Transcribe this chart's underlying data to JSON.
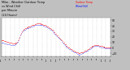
{
  "bg_color": "#ffffff",
  "outer_bg": "#c0c0c0",
  "temp_color": "#ff0000",
  "wind_color": "#0000ff",
  "grid_color": "#aaaaaa",
  "ymin": -15,
  "ymax": 55,
  "ytick_vals": [
    50,
    40,
    30,
    20,
    10,
    0,
    -10
  ],
  "temp_data": [
    14,
    14,
    13,
    13,
    12,
    12,
    12,
    11,
    11,
    11,
    10,
    10,
    9,
    9,
    8,
    8,
    8,
    8,
    8,
    9,
    10,
    11,
    13,
    16,
    20,
    24,
    27,
    30,
    32,
    33,
    34,
    35,
    36,
    37,
    37,
    38,
    38,
    39,
    39,
    40,
    41,
    41,
    42,
    42,
    43,
    43,
    44,
    44,
    44,
    44,
    44,
    44,
    43,
    43,
    43,
    42,
    42,
    41,
    41,
    40,
    39,
    38,
    37,
    36,
    35,
    34,
    33,
    32,
    31,
    29,
    28,
    26,
    25,
    23,
    22,
    20,
    18,
    17,
    15,
    13,
    12,
    10,
    9,
    7,
    6,
    4,
    3,
    2,
    1,
    0,
    -1,
    -2,
    -3,
    -4,
    -5,
    -6,
    -7,
    -7,
    -8,
    -9,
    -9,
    -10,
    -10,
    -10,
    -9,
    -9,
    -8,
    -8,
    -7,
    -6,
    -5,
    -5,
    -4,
    -3,
    -2,
    -1,
    0,
    1,
    2,
    3,
    4,
    4,
    5,
    5,
    5,
    5,
    5,
    5,
    4,
    4,
    3,
    3,
    3,
    2,
    2,
    2,
    1,
    1,
    1,
    1,
    1,
    1,
    1,
    1
  ],
  "wind_data": [
    10,
    10,
    9,
    9,
    8,
    8,
    8,
    7,
    7,
    7,
    6,
    6,
    5,
    5,
    5,
    5,
    5,
    5,
    6,
    7,
    8,
    9,
    11,
    14,
    18,
    22,
    25,
    28,
    30,
    31,
    32,
    33,
    34,
    35,
    35,
    36,
    36,
    37,
    37,
    38,
    39,
    39,
    40,
    40,
    41,
    41,
    42,
    42,
    42,
    42,
    42,
    42,
    41,
    41,
    41,
    40,
    40,
    39,
    39,
    38,
    37,
    36,
    35,
    34,
    33,
    32,
    31,
    30,
    29,
    27,
    26,
    24,
    23,
    21,
    20,
    18,
    16,
    15,
    13,
    11,
    10,
    8,
    7,
    5,
    4,
    2,
    1,
    0,
    -1,
    -2,
    -3,
    -4,
    -5,
    -6,
    -7,
    -8,
    -9,
    -9,
    -10,
    -11,
    -11,
    -12,
    -12,
    -12,
    -11,
    -11,
    -10,
    -10,
    -9,
    -8,
    -7,
    -7,
    -6,
    -5,
    -4,
    -3,
    -2,
    -1,
    0,
    1,
    2,
    2,
    3,
    3,
    3,
    3,
    3,
    3,
    2,
    2,
    1,
    1,
    1,
    0,
    0,
    0,
    -1,
    -1,
    -1,
    -1,
    -1,
    -1,
    -1,
    -1
  ],
  "x_tick_labels": [
    "12a",
    "1a",
    "2a",
    "3a",
    "4a",
    "5a",
    "6a",
    "7a",
    "8a",
    "9a",
    "10a",
    "11a",
    "12p",
    "1p",
    "2p",
    "3p",
    "4p",
    "5p",
    "6p",
    "7p",
    "8p",
    "9p",
    "10p",
    "11p",
    "12a"
  ],
  "legend_temp": "Outdoor Temp",
  "legend_wind": "Wind Chill",
  "title_lines": [
    "Milw... Weather Outdoor Temp",
    "vs Wind Chill",
    "per Minute",
    "(24 Hours)"
  ]
}
